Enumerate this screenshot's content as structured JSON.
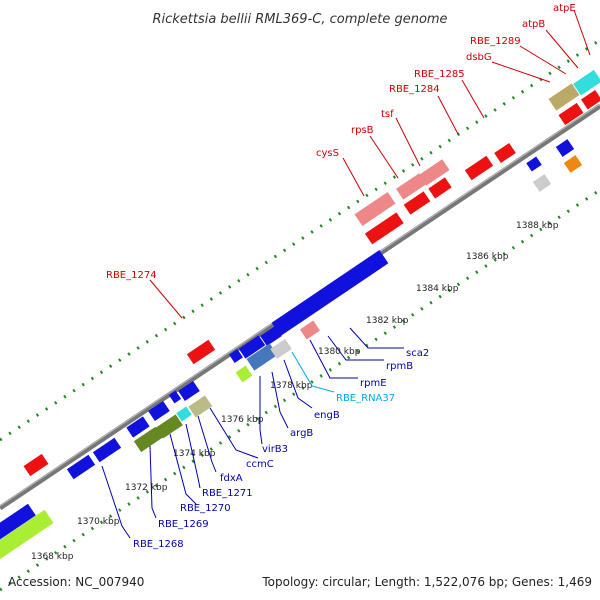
{
  "title": "Rickettsia bellii RML369-C, complete genome",
  "footer": {
    "accession": "Accession: NC_007940",
    "summary": "Topology: circular; Length: 1,522,076 bp; Genes: 1,469"
  },
  "colors": {
    "red_gene": "#ee1111",
    "pink_gene": "#ee8888",
    "blue_gene": "#1111dd",
    "backbone": "#777777",
    "tick": "#228822",
    "label_red": "#cc0000",
    "label_blue": "#0000aa",
    "label_cyan": "#00aadd"
  },
  "scale_labels": [
    "1368 kbp",
    "1370 kbp",
    "1372 kbp",
    "1374 kbp",
    "1376 kbp",
    "1378 kbp",
    "1380 kbp",
    "1382 kbp",
    "1384 kbp",
    "1386 kbp",
    "1388 kbp"
  ],
  "gene_labels_top": [
    "atpE",
    "atpB",
    "RBE_1289",
    "dsbG",
    "RBE_1285",
    "RBE_1284",
    "tsf",
    "rpsB",
    "cysS",
    "RBE_1274"
  ],
  "gene_labels_bottom": [
    "sca2",
    "rpmB",
    "rpmE",
    "RBE_RNA37",
    "engB",
    "argB",
    "virB3",
    "ccmC",
    "fdxA",
    "RBE_1271",
    "RBE_1270",
    "RBE_1269",
    "RBE_1268"
  ]
}
